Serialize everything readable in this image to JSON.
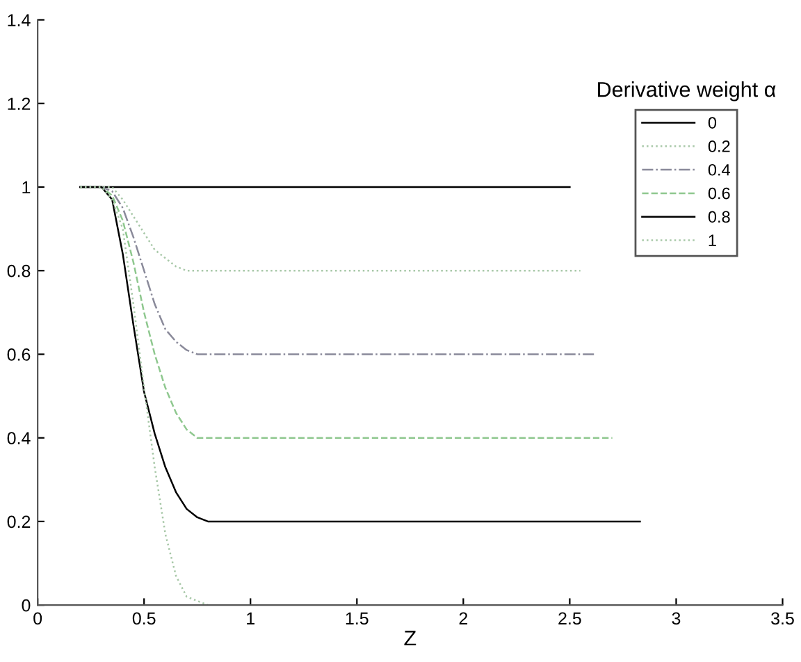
{
  "chart_data": {
    "type": "line",
    "xlabel": "Z",
    "legend_title": "Derivative weight α",
    "legend": "right",
    "xlim": [
      0,
      3.5
    ],
    "ylim": [
      0,
      1.4
    ],
    "xticks": [
      0,
      0.5,
      1,
      1.5,
      2,
      2.5,
      3,
      3.5
    ],
    "yticks": [
      0,
      0.2,
      0.4,
      0.6,
      0.8,
      1,
      1.2,
      1.4
    ],
    "grid": false,
    "marker": "none",
    "series": [
      {
        "name": "0",
        "color": "#000000",
        "line_style": "solid",
        "x": [
          0.2,
          2.5
        ],
        "values": [
          1,
          1
        ]
      },
      {
        "name": "0.2",
        "color": "#a8c8a8",
        "line_style": "dotted",
        "x": [
          0.2,
          0.3,
          0.35,
          0.4,
          0.45,
          0.5,
          0.55,
          0.6,
          0.65,
          0.7,
          0.75,
          0.8,
          0.85,
          0.9,
          2.55
        ],
        "values": [
          1,
          1,
          1,
          0.97,
          0.93,
          0.89,
          0.85,
          0.83,
          0.81,
          0.8,
          0.8,
          0.8,
          0.8,
          0.8,
          0.8
        ]
      },
      {
        "name": "0.4",
        "color": "#8a8a9a",
        "line_style": "dashdot",
        "x": [
          0.2,
          0.3,
          0.35,
          0.4,
          0.45,
          0.5,
          0.55,
          0.6,
          0.65,
          0.7,
          0.75,
          0.8,
          0.85,
          0.9,
          2.62
        ],
        "values": [
          1,
          1,
          0.99,
          0.95,
          0.88,
          0.8,
          0.72,
          0.66,
          0.63,
          0.61,
          0.6,
          0.6,
          0.6,
          0.6,
          0.6
        ]
      },
      {
        "name": "0.6",
        "color": "#8fc88f",
        "line_style": "dashed",
        "x": [
          0.2,
          0.3,
          0.35,
          0.4,
          0.45,
          0.5,
          0.55,
          0.6,
          0.65,
          0.7,
          0.75,
          0.8,
          0.85,
          0.9,
          2.7
        ],
        "values": [
          1,
          1,
          0.98,
          0.92,
          0.82,
          0.7,
          0.6,
          0.52,
          0.46,
          0.42,
          0.4,
          0.4,
          0.4,
          0.4,
          0.4
        ]
      },
      {
        "name": "0.8",
        "color": "#000000",
        "line_style": "solid",
        "x": [
          0.2,
          0.3,
          0.35,
          0.4,
          0.45,
          0.5,
          0.55,
          0.6,
          0.65,
          0.7,
          0.75,
          0.8,
          0.85,
          0.9,
          2.83
        ],
        "values": [
          1,
          1,
          0.97,
          0.84,
          0.67,
          0.51,
          0.41,
          0.33,
          0.27,
          0.23,
          0.21,
          0.2,
          0.2,
          0.2,
          0.2
        ]
      },
      {
        "name": "1",
        "color": "#a8c8a8",
        "line_style": "dotted",
        "x": [
          0.2,
          0.3,
          0.35,
          0.4,
          0.45,
          0.5,
          0.55,
          0.6,
          0.65,
          0.7,
          0.75,
          0.8,
          0.85,
          0.9,
          1.0
        ],
        "values": [
          1,
          1,
          0.97,
          0.9,
          0.72,
          0.52,
          0.33,
          0.17,
          0.07,
          0.02,
          0.01,
          0,
          0,
          0,
          0
        ]
      }
    ]
  }
}
